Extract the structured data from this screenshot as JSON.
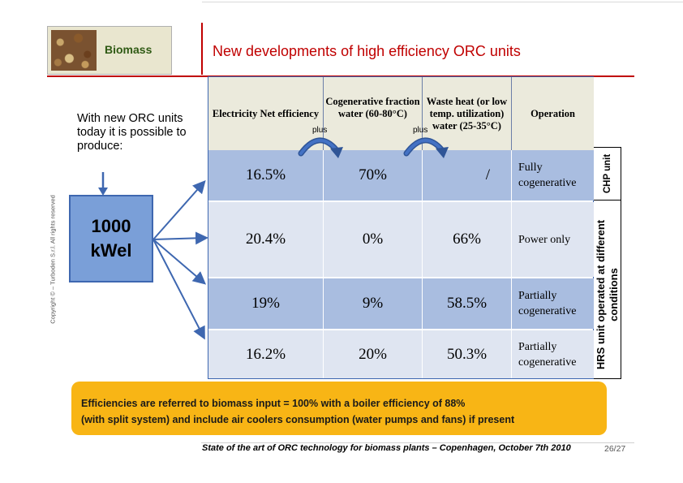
{
  "header": {
    "section_label": "Biomass",
    "title": "New developments of high efficiency ORC units"
  },
  "intro_text": "With new ORC units today it is possible  to produce:",
  "power_box": {
    "line1": "1000",
    "line2": "kWel"
  },
  "copyright": "Copyright © – Turboden S.r.l. All rights reserved",
  "table": {
    "headers": [
      "Electricity Net efficiency",
      "Cogenerative fraction water (60-80°C)",
      "Waste heat (or low temp. utilization) water (25-35°C)",
      "Operation"
    ],
    "plus_labels": [
      "plus",
      "plus"
    ],
    "rows": [
      {
        "electricity": "16.5%",
        "cogen": "70%",
        "waste": "/",
        "operation": "Fully cogenerative"
      },
      {
        "electricity": "20.4%",
        "cogen": "0%",
        "waste": "66%",
        "operation": "Power only"
      },
      {
        "electricity": "19%",
        "cogen": "9%",
        "waste": "58.5%",
        "operation": "Partially cogenerative"
      },
      {
        "electricity": "16.2%",
        "cogen": "20%",
        "waste": "50.3%",
        "operation": "Partially cogenerative"
      }
    ]
  },
  "side_labels": {
    "chp": "CHP unit",
    "hrs": "HRS unit operated at different conditions"
  },
  "note": {
    "line1": "Efficiencies are referred to biomass input = 100%  with a boiler efficiency of 88%",
    "line2": "(with split system) and include air coolers consumption (water pumps and fans) if present"
  },
  "footer": {
    "text": "State of the art of ORC technology for biomass plants – Copenhagen, October 7th 2010",
    "page": "26/27"
  },
  "colors": {
    "accent_red": "#c00000",
    "box_blue": "#7a9fd8",
    "row_dark": "#a9bde0",
    "row_light": "#dfe5f1",
    "note_orange": "#f8b515"
  }
}
